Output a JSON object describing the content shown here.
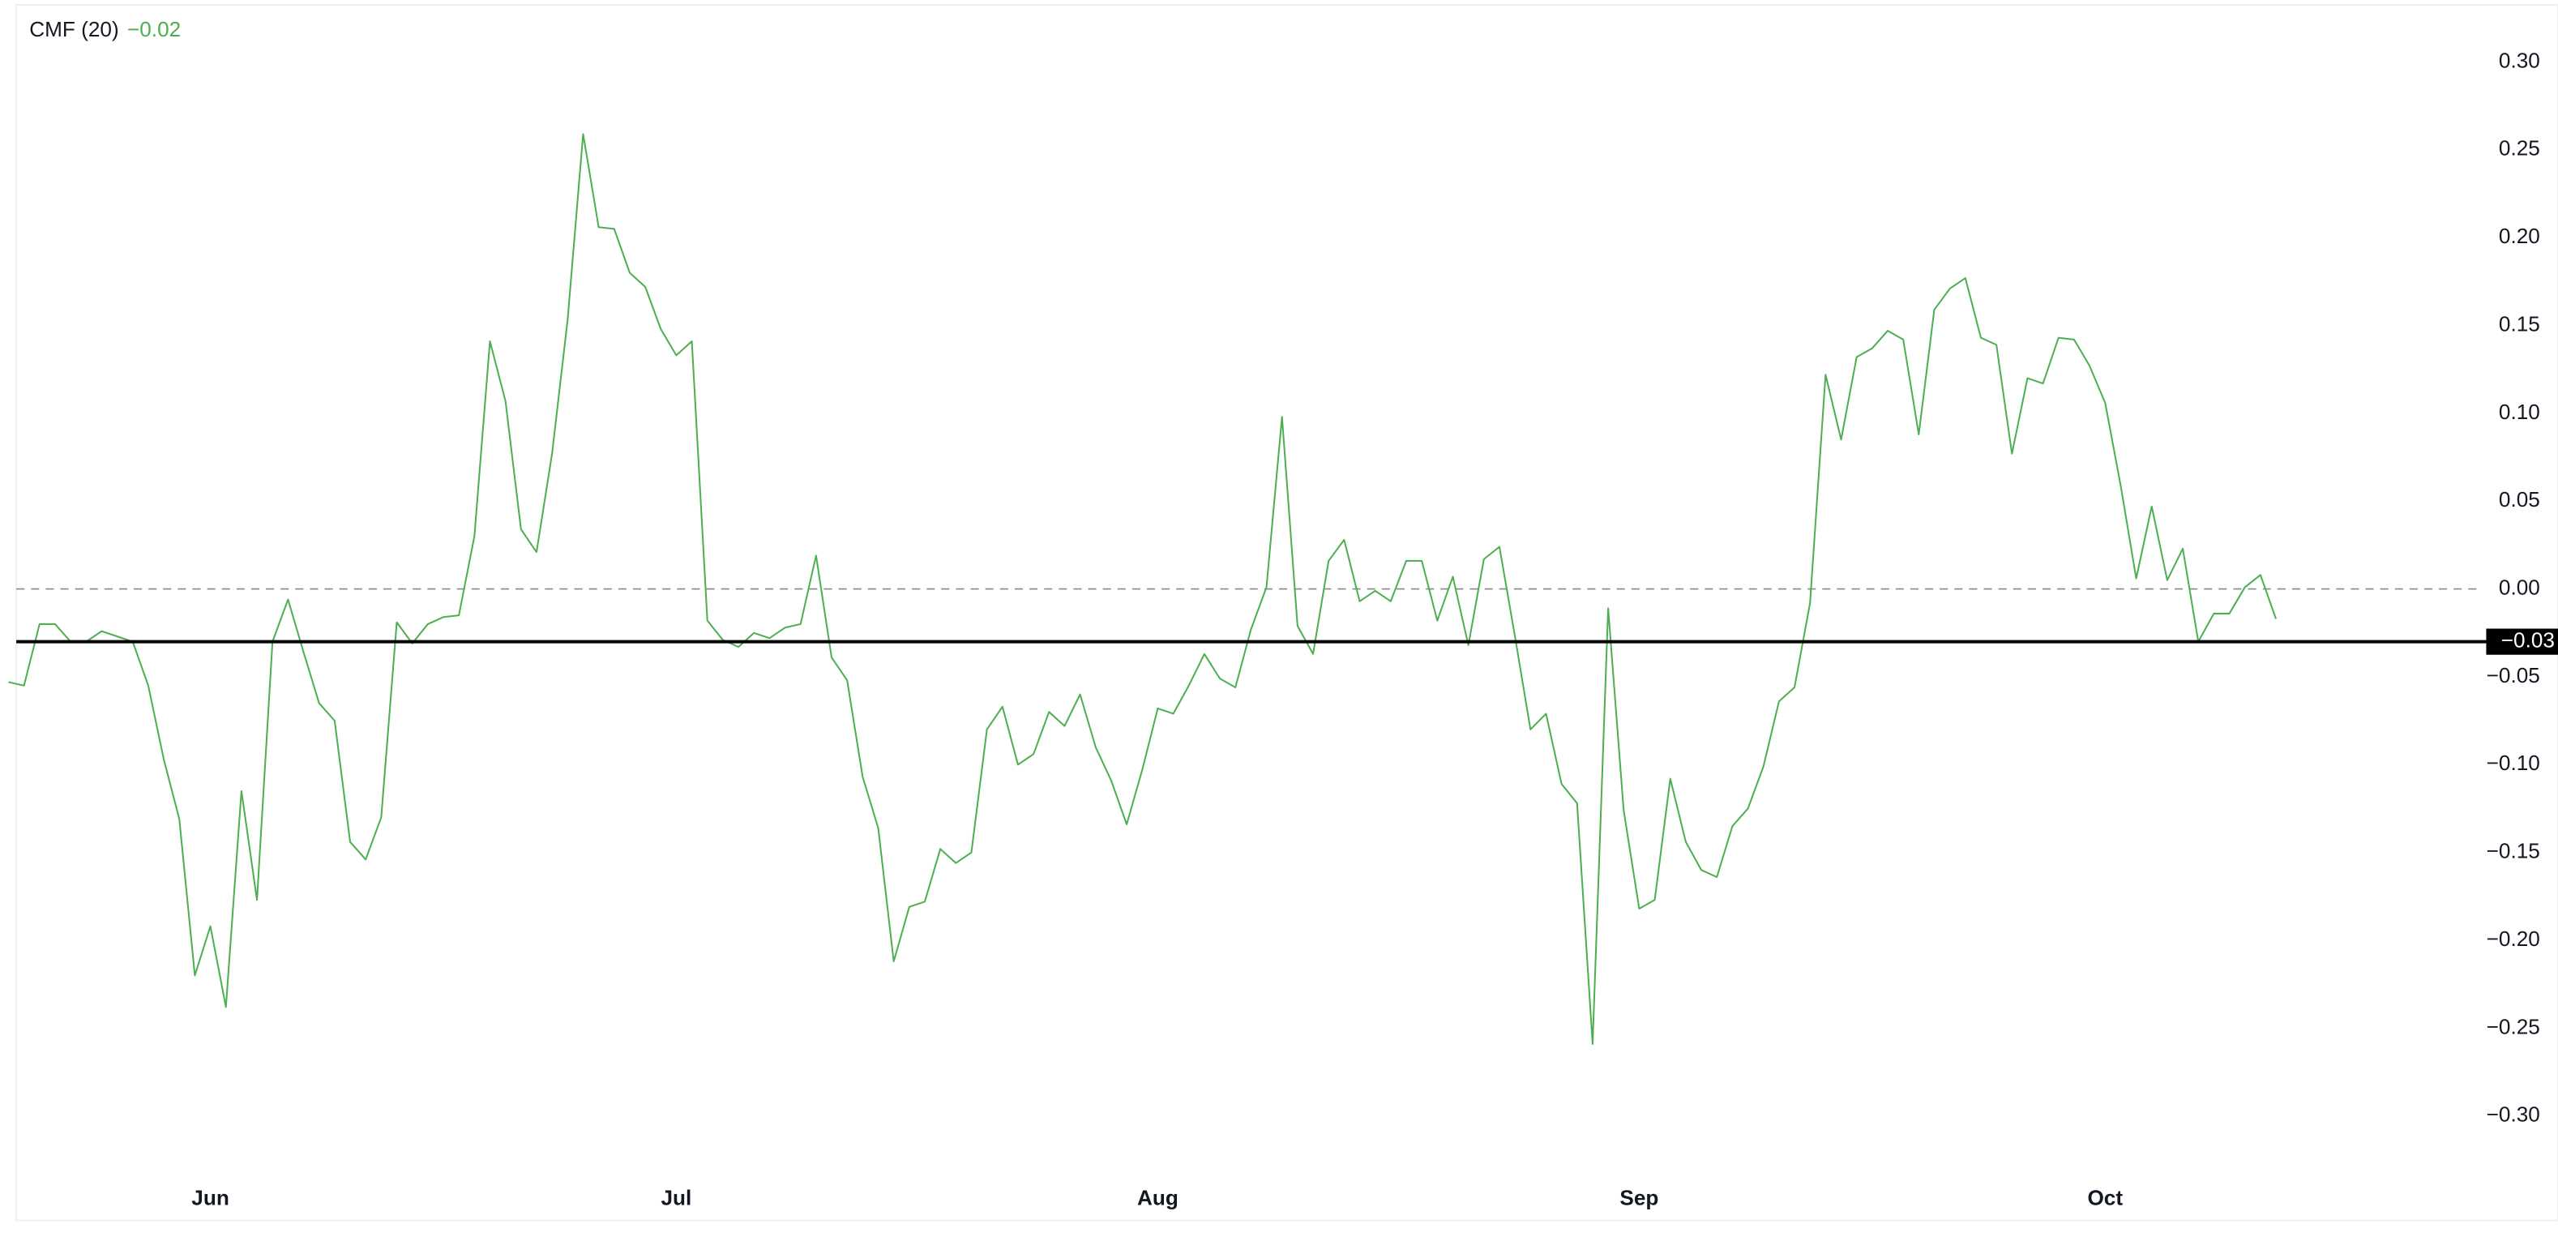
{
  "chart_data": {
    "type": "line",
    "title": "CMF (20)",
    "header_value": "−0.02",
    "color": "#4caf50",
    "categories": [
      null,
      null,
      null,
      null,
      null,
      null,
      null,
      null,
      null,
      null,
      null,
      null,
      null,
      "Jun",
      null,
      null,
      null,
      null,
      null,
      null,
      null,
      null,
      null,
      null,
      null,
      null,
      null,
      null,
      null,
      null,
      null,
      null,
      null,
      null,
      null,
      null,
      null,
      null,
      null,
      null,
      null,
      null,
      null,
      "Jul",
      null,
      null,
      null,
      null,
      null,
      null,
      null,
      null,
      null,
      null,
      null,
      null,
      null,
      null,
      null,
      null,
      null,
      null,
      null,
      null,
      null,
      null,
      null,
      null,
      null,
      null,
      null,
      null,
      null,
      null,
      "Aug",
      null,
      null,
      null,
      null,
      null,
      null,
      null,
      null,
      null,
      null,
      null,
      null,
      null,
      null,
      null,
      null,
      null,
      null,
      null,
      null,
      null,
      null,
      null,
      null,
      null,
      null,
      null,
      null,
      null,
      null,
      "Sep",
      null,
      null,
      null,
      null,
      null,
      null,
      null,
      null,
      null,
      null,
      null,
      null,
      null,
      null,
      null,
      null,
      null,
      null,
      null,
      null,
      null,
      null,
      null,
      null,
      null,
      null,
      null,
      null,
      null,
      "Oct",
      null,
      null,
      null,
      null,
      null,
      null,
      null,
      null,
      null,
      null,
      null
    ],
    "values": [
      -0.053,
      -0.055,
      -0.02,
      -0.02,
      -0.03,
      -0.03,
      -0.024,
      -0.027,
      -0.03,
      -0.055,
      -0.097,
      -0.131,
      -0.22,
      -0.192,
      -0.238,
      -0.115,
      -0.177,
      -0.03,
      -0.006,
      -0.036,
      -0.065,
      -0.075,
      -0.144,
      -0.154,
      -0.13,
      -0.019,
      -0.031,
      -0.02,
      -0.016,
      -0.015,
      0.03,
      0.141,
      0.107,
      0.034,
      0.021,
      0.077,
      0.153,
      0.259,
      0.206,
      0.205,
      0.18,
      0.172,
      0.148,
      0.133,
      0.141,
      -0.018,
      -0.029,
      -0.033,
      -0.025,
      -0.028,
      -0.022,
      -0.02,
      0.019,
      -0.039,
      -0.052,
      -0.107,
      -0.136,
      -0.212,
      -0.181,
      -0.178,
      -0.148,
      -0.156,
      -0.15,
      -0.08,
      -0.067,
      -0.1,
      -0.094,
      -0.07,
      -0.078,
      -0.06,
      -0.09,
      -0.109,
      -0.134,
      -0.103,
      -0.068,
      -0.071,
      -0.055,
      -0.037,
      -0.051,
      -0.056,
      -0.023,
      0.001,
      0.098,
      -0.021,
      -0.037,
      0.016,
      0.028,
      -0.007,
      -0.001,
      -0.007,
      0.016,
      0.016,
      -0.018,
      0.007,
      -0.032,
      0.017,
      0.024,
      -0.027,
      -0.08,
      -0.071,
      -0.111,
      -0.122,
      -0.259,
      -0.011,
      -0.126,
      -0.182,
      -0.177,
      -0.108,
      -0.144,
      -0.16,
      -0.164,
      -0.135,
      -0.125,
      -0.101,
      -0.064,
      -0.056,
      -0.008,
      0.122,
      0.085,
      0.132,
      0.137,
      0.147,
      0.142,
      0.088,
      0.159,
      0.171,
      0.177,
      0.143,
      0.139,
      0.077,
      0.12,
      0.117,
      0.143,
      0.142,
      0.127,
      0.106,
      0.059,
      0.006,
      0.047,
      0.005,
      0.023,
      -0.03,
      -0.014,
      -0.014,
      0.001,
      0.008,
      -0.017
    ],
    "ylim": [
      -0.33,
      0.33
    ],
    "yticks": [
      {
        "value": 0.3,
        "label": "0.30"
      },
      {
        "value": 0.25,
        "label": "0.25"
      },
      {
        "value": 0.2,
        "label": "0.20"
      },
      {
        "value": 0.15,
        "label": "0.15"
      },
      {
        "value": 0.1,
        "label": "0.10"
      },
      {
        "value": 0.05,
        "label": "0.05"
      },
      {
        "value": 0,
        "label": "0.00"
      },
      {
        "value": -0.05,
        "label": "−0.05"
      },
      {
        "value": -0.1,
        "label": "−0.10"
      },
      {
        "value": -0.15,
        "label": "−0.15"
      },
      {
        "value": -0.2,
        "label": "−0.20"
      },
      {
        "value": -0.25,
        "label": "−0.25"
      },
      {
        "value": -0.3,
        "label": "−0.30"
      }
    ],
    "zero_line": 0,
    "price_line": {
      "value": -0.03,
      "label": "−0.03"
    }
  }
}
